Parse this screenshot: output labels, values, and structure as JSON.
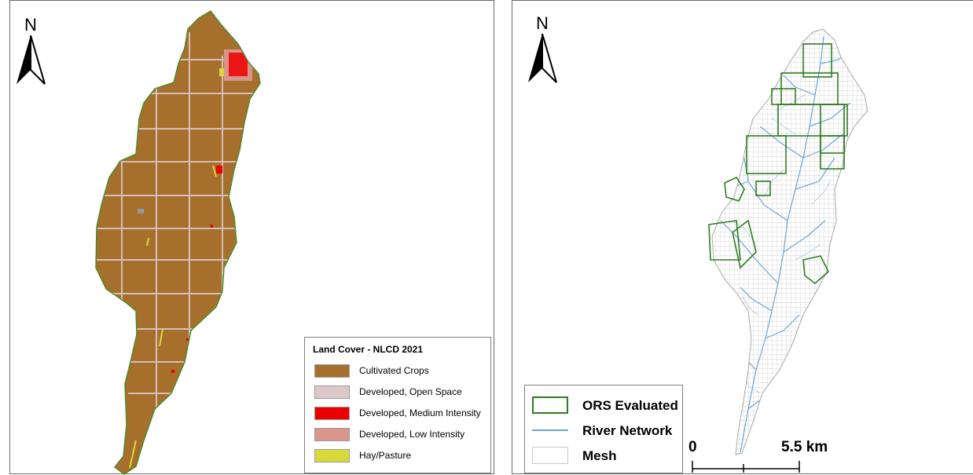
{
  "left_map": {
    "north_label": "N",
    "legend": {
      "title": "Land Cover - NLCD 2021",
      "items": [
        {
          "label": "Cultivated Crops",
          "color": "#A76F2C"
        },
        {
          "label": "Developed, Open Space",
          "color": "#DCC7C9"
        },
        {
          "label": "Developed, Medium Intensity",
          "color": "#EB0000"
        },
        {
          "label": "Developed, Low Intensity",
          "color": "#D9958A"
        },
        {
          "label": "Hay/Pasture",
          "color": "#DBD83C"
        }
      ]
    }
  },
  "right_map": {
    "north_label": "N",
    "legend": {
      "items": [
        {
          "label": "ORS Evaluated",
          "icon": "green-outline-box",
          "color": "#2E7D20"
        },
        {
          "label": "River Network",
          "icon": "blue-line",
          "color": "#6BA6D6"
        },
        {
          "label": "Mesh",
          "icon": "gray-outline-box",
          "color": "#C8C8C8"
        }
      ]
    },
    "scale": {
      "start_label": "0",
      "end_label": "5.5 km"
    }
  }
}
